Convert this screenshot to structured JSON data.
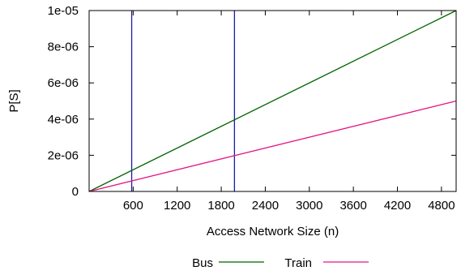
{
  "chart_data": {
    "type": "line",
    "xlabel": "Access Network Size (n)",
    "ylabel": "P[S]",
    "xlim": [
      0,
      5000
    ],
    "ylim": [
      0,
      1e-05
    ],
    "x_ticks": [
      600,
      1200,
      1800,
      2400,
      3000,
      3600,
      4200,
      4800
    ],
    "x_tick_labels": [
      "600",
      "1200",
      "1800",
      "2400",
      "3000",
      "3600",
      "4200",
      "4800"
    ],
    "y_ticks": [
      0,
      2e-06,
      4e-06,
      6e-06,
      8e-06,
      1e-05
    ],
    "y_tick_labels": [
      "0",
      "2e-06",
      "4e-06",
      "6e-06",
      "8e-06",
      "1e-05"
    ],
    "grid": false,
    "legend_position": "bottom-center",
    "series": [
      {
        "name": "Bus",
        "color": "#006400",
        "x": [
          0,
          5000
        ],
        "y": [
          0,
          1e-05
        ]
      },
      {
        "name": "Train",
        "color": "#e5177f",
        "x": [
          0,
          5000
        ],
        "y": [
          0,
          5e-06
        ]
      }
    ],
    "vertical_lines": [
      {
        "x": 580,
        "color": "#1a1ab3"
      },
      {
        "x": 1980,
        "color": "#1a1ab3"
      }
    ]
  }
}
